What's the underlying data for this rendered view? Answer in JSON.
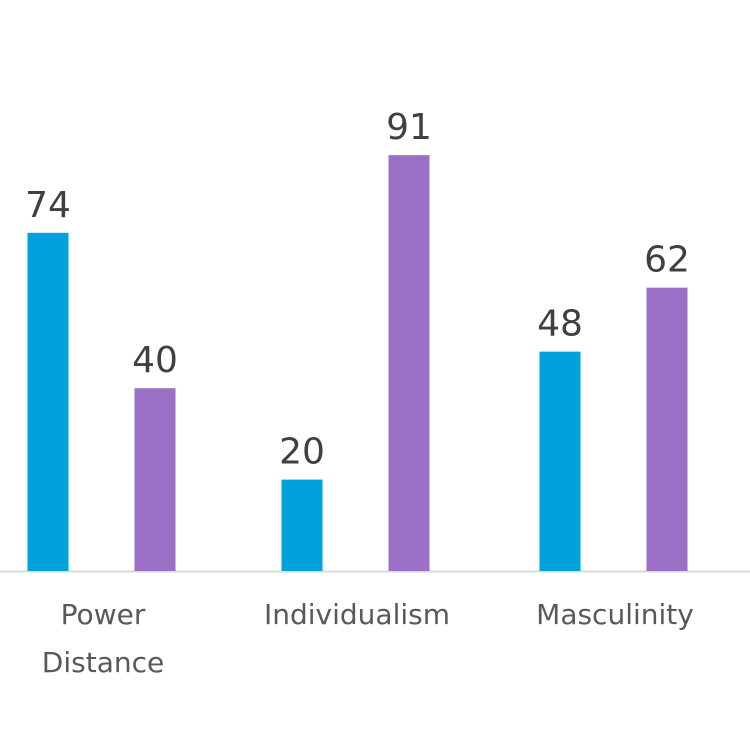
{
  "chart_data": {
    "type": "bar",
    "categories": [
      "Power Distance",
      "Individualism",
      "Masculinity"
    ],
    "category_lines": [
      [
        "Power",
        "Distance"
      ],
      [
        "Individualism"
      ],
      [
        "Masculinity"
      ]
    ],
    "series": [
      {
        "values": [
          74,
          20,
          48
        ],
        "color": "#00A2DB"
      },
      {
        "values": [
          40,
          91,
          62
        ],
        "color": "#9B71C8"
      }
    ],
    "title": "",
    "xlabel": "",
    "ylabel": "",
    "ylim": [
      0,
      100
    ],
    "grid": false,
    "legend": "none",
    "data_labels": true,
    "axis_line_color": "#D9D9D9"
  }
}
